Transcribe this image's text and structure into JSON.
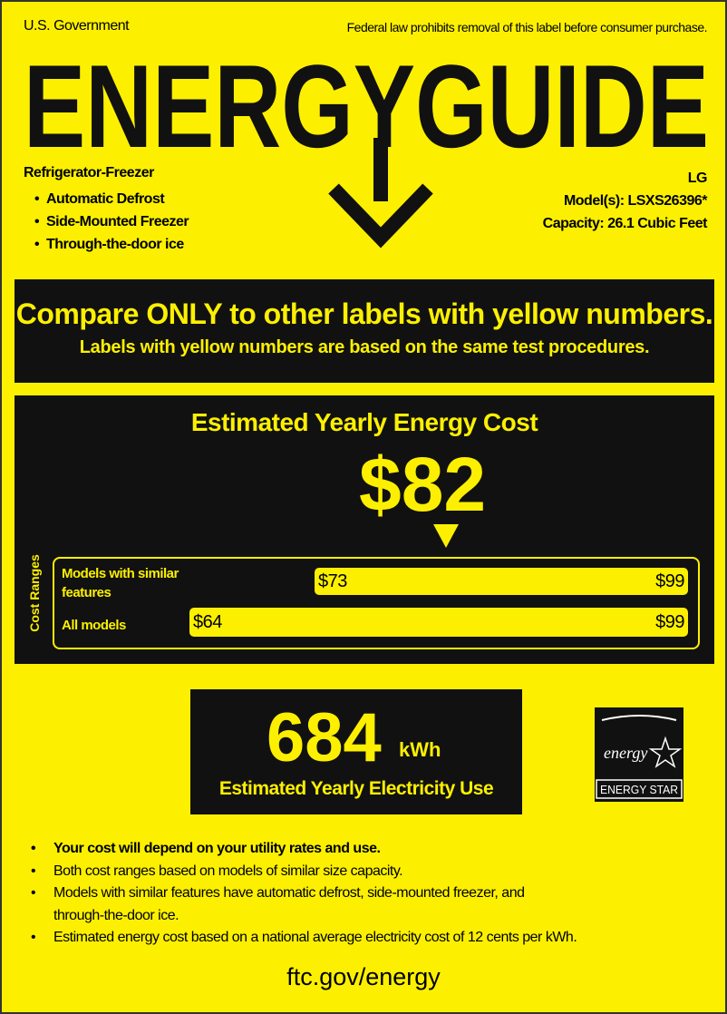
{
  "header": {
    "left": "U.S. Government",
    "right": "Federal law prohibits removal of this label before consumer purchase.",
    "title": "ENERGYGUIDE"
  },
  "product": {
    "type": "Refrigerator-Freezer",
    "features": [
      "Automatic Defrost",
      "Side-Mounted Freezer",
      "Through-the-door ice"
    ],
    "brand": "LG",
    "model": "Model(s): LSXS26396*",
    "capacity": "Capacity: 26.1 Cubic Feet"
  },
  "compare": {
    "headline": "Compare ONLY to other labels with yellow numbers.",
    "subline": "Labels with yellow numbers are based on the same test procedures."
  },
  "cost": {
    "title": "Estimated Yearly Energy Cost",
    "value": "$82",
    "ranges_label": "Cost Ranges",
    "ranges": [
      {
        "label": "Models with similar features",
        "low": "$73",
        "high": "$99"
      },
      {
        "label": "All models",
        "low": "$64",
        "high": "$99"
      }
    ]
  },
  "electricity": {
    "value": "684",
    "unit": "kWh",
    "label": "Estimated Yearly Electricity Use"
  },
  "energy_star": {
    "script": "energy",
    "label": "ENERGY STAR"
  },
  "notes": [
    "Your cost will depend on your utility rates and use.",
    "Both cost ranges based on models of similar size capacity.",
    "Models with similar features have automatic defrost, side-mounted freezer, and through-the-door ice.",
    "Estimated energy cost based on a national average electricity cost of 12 cents per kWh."
  ],
  "footer": "ftc.gov/energy"
}
